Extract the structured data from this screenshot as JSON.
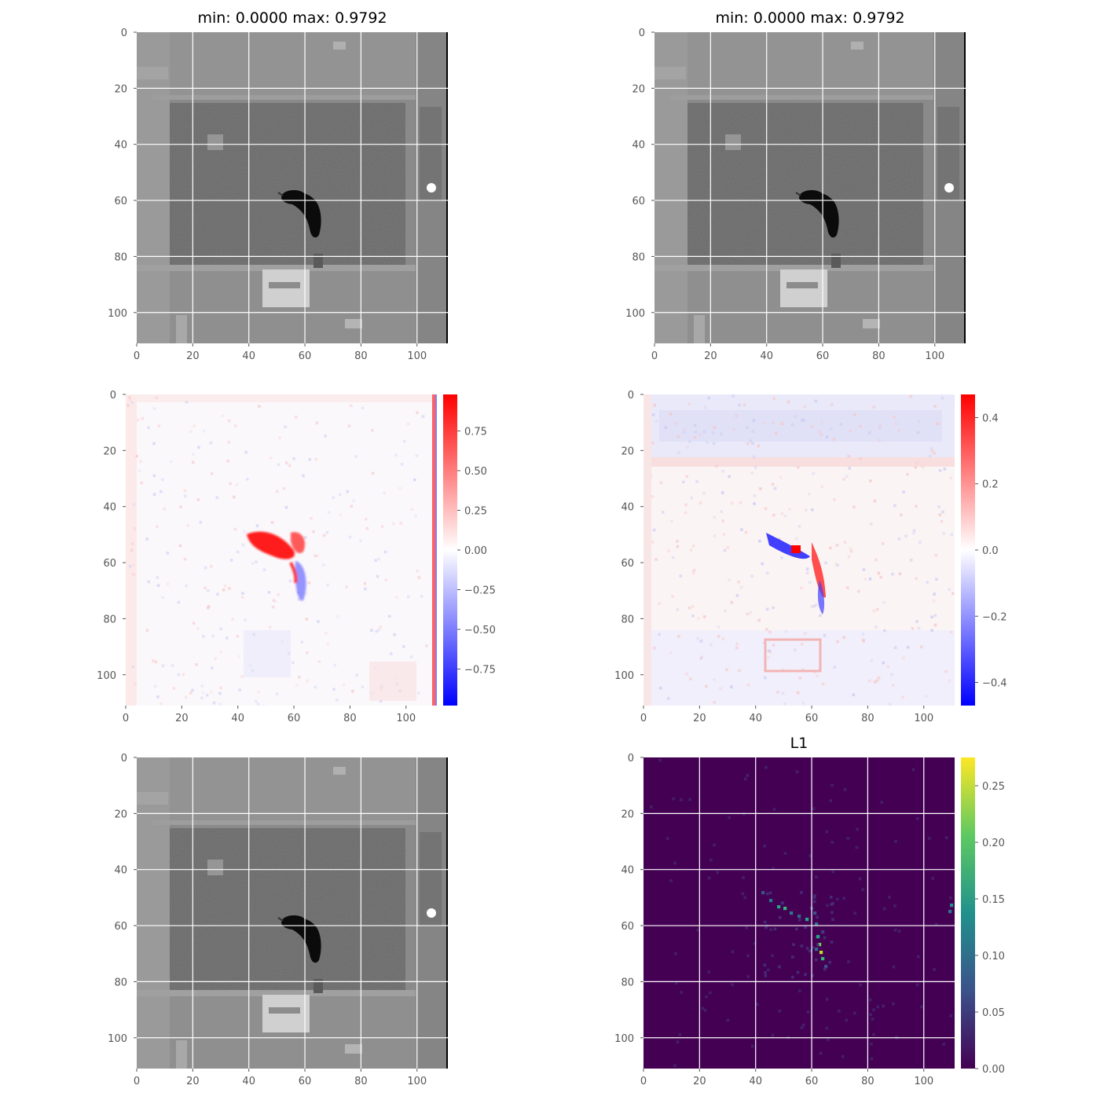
{
  "figure": {
    "panels": [
      {
        "id": "input-image",
        "title": "min: 0.0000 max: 0.9792",
        "kind": "grayscale-image"
      },
      {
        "id": "reconstruction-image",
        "title": "min: 0.0000 max: 0.9792",
        "kind": "grayscale-image"
      },
      {
        "id": "diff-left",
        "title": "",
        "kind": "diverging-map",
        "colorbar": {
          "cmap": "bwr",
          "ticks": [
            "0.75",
            "0.50",
            "0.25",
            "0.00",
            "−0.25",
            "−0.50",
            "−0.75"
          ],
          "tick_values": [
            0.75,
            0.5,
            0.25,
            0.0,
            -0.25,
            -0.5,
            -0.75
          ],
          "range": [
            -0.98,
            0.98
          ]
        }
      },
      {
        "id": "diff-right",
        "title": "",
        "kind": "diverging-map",
        "colorbar": {
          "cmap": "bwr",
          "ticks": [
            "0.4",
            "0.2",
            "0.0",
            "−0.2",
            "−0.4"
          ],
          "tick_values": [
            0.4,
            0.2,
            0.0,
            -0.2,
            -0.4
          ],
          "range": [
            -0.47,
            0.47
          ]
        }
      },
      {
        "id": "output-image",
        "title": "",
        "kind": "grayscale-image"
      },
      {
        "id": "l1-map",
        "title": "L1",
        "kind": "l1-heatmap",
        "colorbar": {
          "cmap": "viridis",
          "ticks": [
            "0.25",
            "0.20",
            "0.15",
            "0.10",
            "0.05",
            "0.00"
          ],
          "tick_values": [
            0.25,
            0.2,
            0.15,
            0.1,
            0.05,
            0.0
          ],
          "range": [
            0.0,
            0.275
          ]
        }
      }
    ],
    "axis_ticks": {
      "x": [
        "0",
        "20",
        "40",
        "60",
        "80",
        "100"
      ],
      "y": [
        "0",
        "20",
        "40",
        "60",
        "80",
        "100"
      ]
    }
  },
  "chart_data": [
    {
      "type": "heatmap",
      "title": "min: 0.0000 max: 0.9792",
      "xlim": [
        0,
        111
      ],
      "ylim": [
        111,
        0
      ],
      "value_range": [
        0.0,
        0.9792
      ],
      "cmap": "gray",
      "grid": true
    },
    {
      "type": "heatmap",
      "title": "min: 0.0000 max: 0.9792",
      "xlim": [
        0,
        111
      ],
      "ylim": [
        111,
        0
      ],
      "value_range": [
        0.0,
        0.9792
      ],
      "cmap": "gray",
      "grid": true
    },
    {
      "type": "heatmap",
      "xlim": [
        0,
        111
      ],
      "ylim": [
        111,
        0
      ],
      "value_range": [
        -0.98,
        0.98
      ],
      "cmap": "bwr",
      "grid": false
    },
    {
      "type": "heatmap",
      "xlim": [
        0,
        111
      ],
      "ylim": [
        111,
        0
      ],
      "value_range": [
        -0.47,
        0.47
      ],
      "cmap": "bwr",
      "grid": false
    },
    {
      "type": "heatmap",
      "xlim": [
        0,
        111
      ],
      "ylim": [
        111,
        0
      ],
      "cmap": "gray",
      "grid": true
    },
    {
      "type": "heatmap",
      "title": "L1",
      "xlim": [
        0,
        111
      ],
      "ylim": [
        111,
        0
      ],
      "value_range": [
        0.0,
        0.275
      ],
      "cmap": "viridis",
      "grid": true
    }
  ]
}
